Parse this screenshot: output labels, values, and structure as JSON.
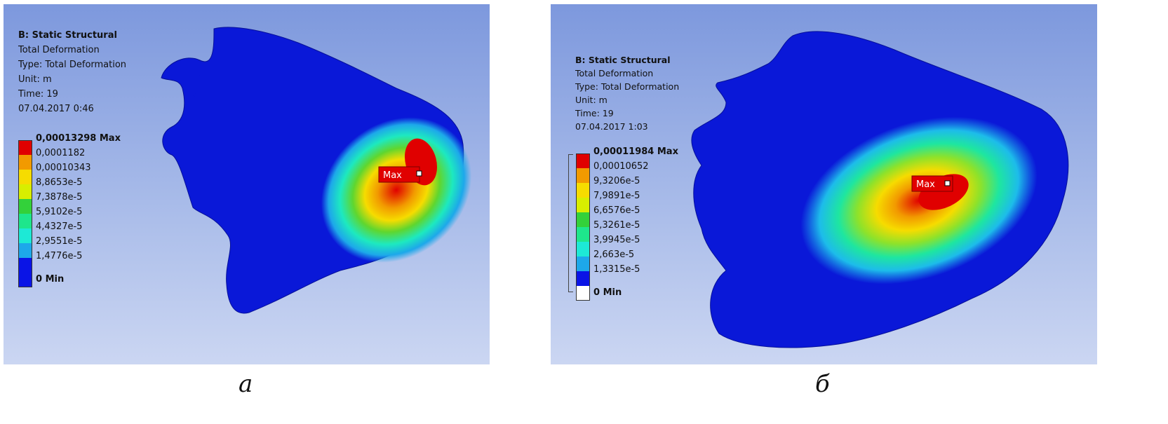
{
  "panels": [
    {
      "id": "a",
      "info": {
        "analysis": "B: Static Structural",
        "result": "Total Deformation",
        "type": "Type: Total Deformation",
        "unit": "Unit: m",
        "time": "Time: 19",
        "date": "07.04.2017 0:46"
      },
      "legend": [
        {
          "label": "0,00013298 Max",
          "color": "#e00000"
        },
        {
          "label": "0,0001182",
          "color": "#f29a00"
        },
        {
          "label": "0,00010343",
          "color": "#f6dc00"
        },
        {
          "label": "8,8653e-5",
          "color": "#d8ee00"
        },
        {
          "label": "7,3878e-5",
          "color": "#33d13a"
        },
        {
          "label": "5,9102e-5",
          "color": "#1ee68c"
        },
        {
          "label": "4,4327e-5",
          "color": "#1de9d6"
        },
        {
          "label": "2,9551e-5",
          "color": "#1da8ea"
        },
        {
          "label": "1,4776e-5",
          "color": "#0a14e6"
        },
        {
          "label": "0 Min",
          "color": "#0a14e6"
        }
      ],
      "probe_label": "Max",
      "caption": "а"
    },
    {
      "id": "b",
      "info": {
        "analysis": "B: Static Structural",
        "result": "Total Deformation",
        "type": "Type: Total Deformation",
        "unit": "Unit: m",
        "time": "Time: 19",
        "date": "07.04.2017 1:03"
      },
      "legend": [
        {
          "label": "0,00011984 Max",
          "color": "#e00000"
        },
        {
          "label": "0,00010652",
          "color": "#f29a00"
        },
        {
          "label": "9,3206e-5",
          "color": "#f6dc00"
        },
        {
          "label": "7,9891e-5",
          "color": "#d8ee00"
        },
        {
          "label": "6,6576e-5",
          "color": "#33d13a"
        },
        {
          "label": "5,3261e-5",
          "color": "#1ee68c"
        },
        {
          "label": "3,9945e-5",
          "color": "#1de9d6"
        },
        {
          "label": "2,663e-5",
          "color": "#1da8ea"
        },
        {
          "label": "1,3315e-5",
          "color": "#0a14e6"
        },
        {
          "label": "0 Min",
          "color": "#ffffff"
        }
      ],
      "probe_label": "Max",
      "caption": "б"
    }
  ]
}
